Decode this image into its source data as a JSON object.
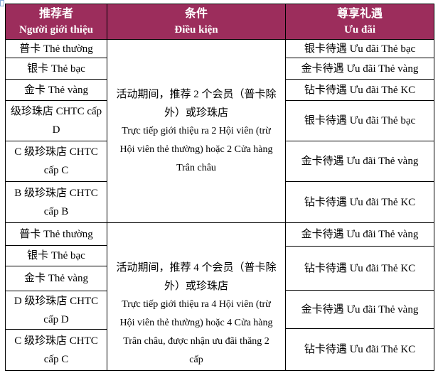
{
  "colors": {
    "header_bg": "#9C2D5C",
    "header_text": "#FFFFFF",
    "border": "#000000",
    "body_text": "#000000",
    "page_bg": "#FFFFFF"
  },
  "header": {
    "columns": [
      {
        "zh": "推荐者",
        "vi": "Người giới thiệu"
      },
      {
        "zh": "条件",
        "vi": "Điều kiện"
      },
      {
        "zh": "尊享礼遇",
        "vi": "Ưu đãi"
      }
    ]
  },
  "referrers": [
    "普卡 Thẻ thường",
    "银卡 Thẻ bạc",
    "金卡 Thẻ vàng",
    "级珍珠店 CHTC cấp\nD",
    "C 级珍珠店 CHTC\ncấp C",
    "B 级珍珠店 CHTC\ncấp B",
    "普卡 Thẻ thường",
    "银卡 Thẻ bạc",
    "金卡 Thẻ vàng",
    "D 级珍珠店 CHTC\ncấp D",
    "C 级珍珠店 CHTC\ncấp C"
  ],
  "conditions": [
    {
      "zh": "活动期间，推荐 2 个会员（普卡除\n外）或珍珠店",
      "vi": "Trực tiếp giới thiệu ra 2 Hội viên (trừ\nHội viên thẻ thường) hoặc 2 Cửa hàng\nTrân châu"
    },
    {
      "zh": "活动期间，推荐 4 个会员（普卡除\n外）或珍珠店",
      "vi": "Trực tiếp giới thiệu ra 4 Hội viên (trừ\nHội viên thẻ thường) hoặc 4 Cửa hàng\nTrân châu, được nhận ưu đãi thăng 2\ncấp"
    }
  ],
  "benefits": [
    "银卡待遇 Ưu đãi Thẻ bạc",
    "金卡待遇 Ưu đãi Thẻ vàng",
    "钻卡待遇 Ưu đãi Thẻ KC",
    "银卡待遇 Ưu đãi Thẻ bạc",
    "金卡待遇 Ưu đãi Thẻ vàng",
    "钻卡待遇 Ưu đãi Thẻ KC",
    "金卡待遇 Ưu đãi Thẻ vàng",
    "钻卡待遇 Ưu đãi Thẻ KC",
    "金卡待遇 Ưu đãi Thẻ vàng",
    "钻卡待遇 Ưu đãi Thẻ KC"
  ]
}
